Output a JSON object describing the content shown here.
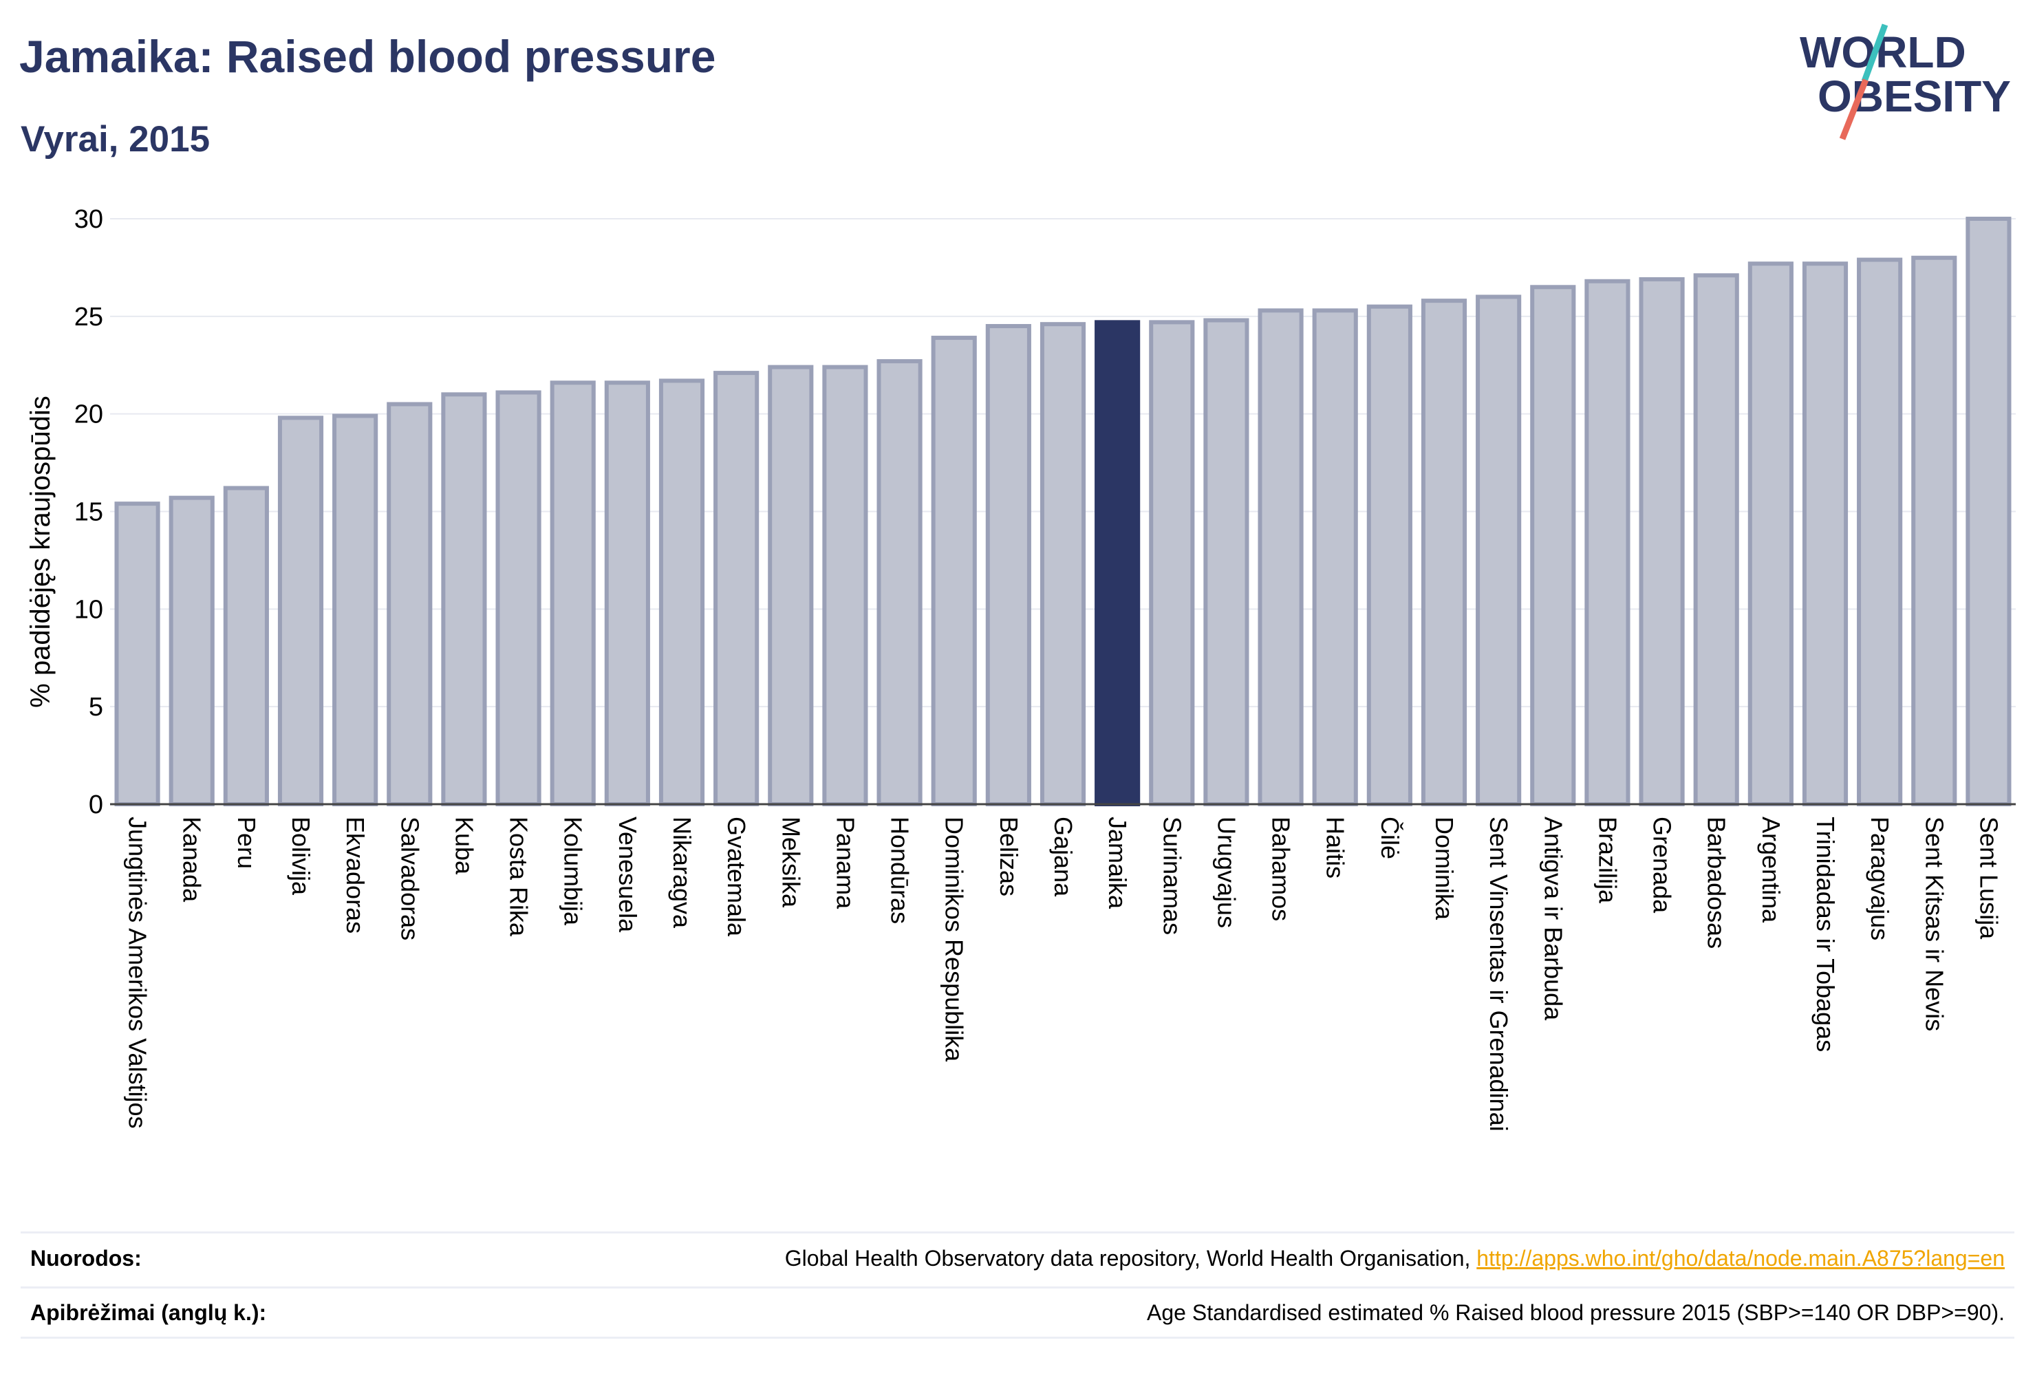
{
  "title": "Jamaika: Raised blood pressure",
  "subtitle": "Vyrai, 2015",
  "logo": {
    "line1": "WORLD",
    "line2": "OBESITY"
  },
  "colors": {
    "bar": "#bfc3d0",
    "bar_border": "#9aa0b7",
    "highlight": "#2b3664",
    "title": "#2b3664",
    "logo_slash_teal": "#3cc0bd",
    "logo_slash_coral": "#e8695a"
  },
  "chart_data": {
    "type": "bar",
    "ylabel": "% padidėjęs kraujospūdis",
    "ylim": [
      0,
      30
    ],
    "yticks": [
      0,
      5,
      10,
      15,
      20,
      25,
      30
    ],
    "grid": true,
    "highlight": "Jamaika",
    "categories": [
      "Jungtinės Amerikos Valstijos",
      "Kanada",
      "Peru",
      "Bolivija",
      "Ekvadoras",
      "Salvadoras",
      "Kuba",
      "Kosta Rika",
      "Kolumbija",
      "Venesuela",
      "Nikaragva",
      "Gvatemala",
      "Meksika",
      "Panama",
      "Hondūras",
      "Dominikos Respublika",
      "Belizas",
      "Gajana",
      "Jamaika",
      "Surinamas",
      "Urugvajus",
      "Bahamos",
      "Haitis",
      "Čilė",
      "Dominika",
      "Sent Vinsentas ir Grenadinai",
      "Antigva ir Barbuda",
      "Brazilija",
      "Grenada",
      "Barbadosas",
      "Argentina",
      "Trinidadas ir Tobagas",
      "Paragvajus",
      "Sent Kitsas ir Nevis",
      "Sent Lusija"
    ],
    "values": [
      15.4,
      15.7,
      16.2,
      19.8,
      19.9,
      20.5,
      21.0,
      21.1,
      21.6,
      21.6,
      21.7,
      22.1,
      22.4,
      22.4,
      22.7,
      23.9,
      24.5,
      24.6,
      24.7,
      24.7,
      24.8,
      25.3,
      25.3,
      25.5,
      25.8,
      26.0,
      26.5,
      26.8,
      26.9,
      27.1,
      27.7,
      27.7,
      27.9,
      28.0,
      30.0
    ]
  },
  "footer": {
    "sources_label": "Nuorodos:",
    "sources_text": "Global Health Observatory data repository, World Health Organisation, ",
    "sources_link": "http://apps.who.int/gho/data/node.main.A875?lang=en",
    "definitions_label": "Apibrėžimai (anglų k.):",
    "definitions_text": "Age Standardised estimated % Raised blood pressure 2015 (SBP>=140 OR DBP>=90)."
  }
}
